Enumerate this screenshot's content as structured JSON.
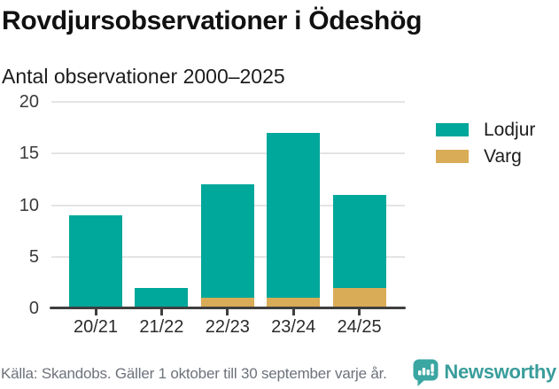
{
  "header": {
    "title": "Rovdjursobservationer i Ödeshög",
    "subtitle": "Antal observationer 2000–2025"
  },
  "chart_data": {
    "type": "bar",
    "stacked": true,
    "title": "Rovdjursobservationer i Ödeshög",
    "subtitle": "Antal observationer 2000–2025",
    "categories": [
      "20/21",
      "21/22",
      "22/23",
      "23/24",
      "24/25"
    ],
    "series": [
      {
        "name": "Lodjur",
        "color": "#00a79b",
        "values": [
          9,
          2,
          11,
          16,
          9
        ]
      },
      {
        "name": "Varg",
        "color": "#d9ac57",
        "values": [
          0,
          0,
          1,
          1,
          2
        ]
      }
    ],
    "stack_order_bottom_to_top": [
      "Varg",
      "Lodjur"
    ],
    "totals": [
      9,
      2,
      12,
      17,
      11
    ],
    "xlabel": "",
    "ylabel": "",
    "ylim": [
      0,
      20
    ],
    "yticks": [
      0,
      5,
      10,
      15,
      20
    ],
    "grid": "horizontal-only",
    "legend_position": "right"
  },
  "footer": {
    "source": "Källa: Skandobs. Gäller 1 oktober till 30 september varje år.",
    "brand": "Newsworthy"
  },
  "icons": {
    "brand_logo": "newsworthy-speech-bubble-bar-chart-icon"
  },
  "colors": {
    "bar_teal": "#00a79b",
    "bar_gold": "#d9ac57",
    "axis": "#3f3f3f",
    "gridline": "#e4e4e4",
    "title_text": "#111111",
    "muted_text": "#6d727b",
    "brand_teal": "#399d9b"
  }
}
